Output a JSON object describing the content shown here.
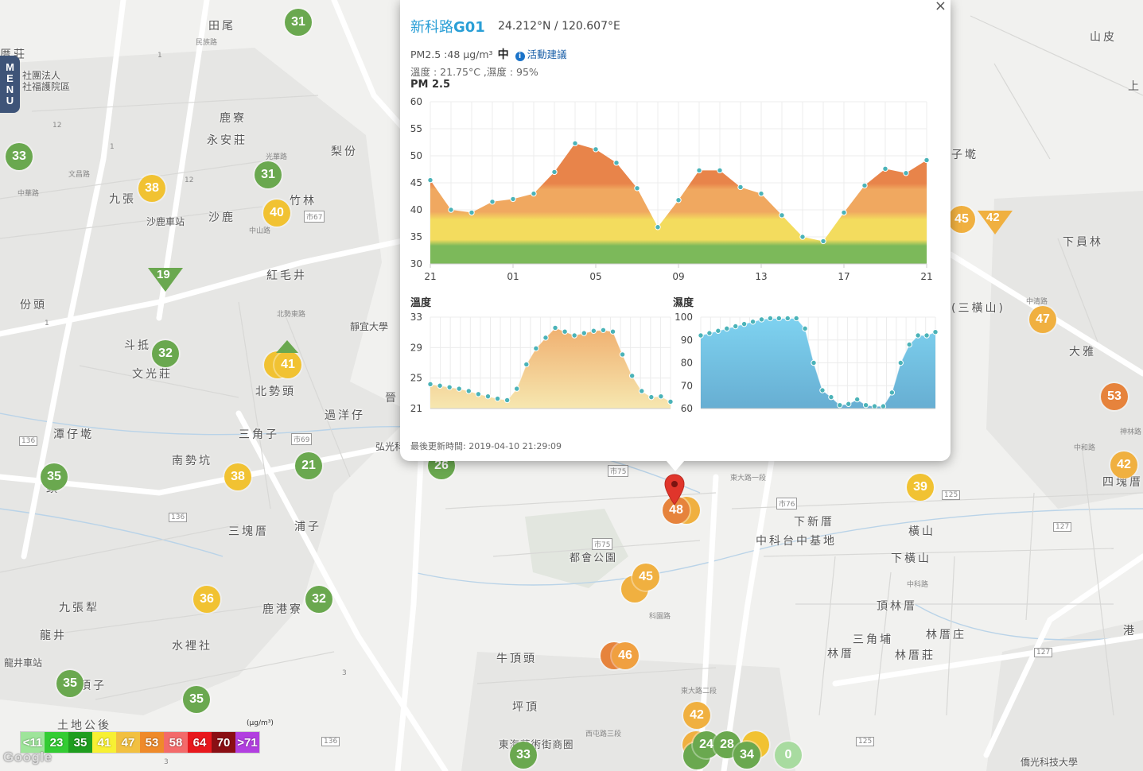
{
  "map": {
    "places": [
      {
        "label": "田尾"
      },
      {
        "label": "鹿寮"
      },
      {
        "label": "永安莊"
      },
      {
        "label": "梨份"
      },
      {
        "label": "竹林"
      },
      {
        "label": "沙鹿"
      },
      {
        "label": "九張"
      },
      {
        "label": "沙鹿車站"
      },
      {
        "label": "紅毛井"
      },
      {
        "label": "份頭"
      },
      {
        "label": "斗抵"
      },
      {
        "label": "文光莊"
      },
      {
        "label": "北勢頭"
      },
      {
        "label": "過洋仔"
      },
      {
        "label": "三角子"
      },
      {
        "label": "潭仔墘"
      },
      {
        "label": "南勢坑"
      },
      {
        "label": "三塊厝"
      },
      {
        "label": "浦子"
      },
      {
        "label": "九張犁"
      },
      {
        "label": "龍井"
      },
      {
        "label": "水裡社"
      },
      {
        "label": "鹿港寮"
      },
      {
        "label": "牛頂頭"
      },
      {
        "label": "都會公園"
      },
      {
        "label": "坪頂"
      },
      {
        "label": "東海藝術街商圈"
      },
      {
        "label": "下新厝"
      },
      {
        "label": "中科台中基地"
      },
      {
        "label": "橫山"
      },
      {
        "label": "下橫山"
      },
      {
        "label": "頂林厝"
      },
      {
        "label": "三角埔"
      },
      {
        "label": "林厝"
      },
      {
        "label": "林厝庄"
      },
      {
        "label": "林厝莊"
      },
      {
        "label": "大雅"
      },
      {
        "label": "下員林"
      },
      {
        "label": "山皮"
      },
      {
        "label": "四塊厝"
      },
      {
        "label": "港"
      },
      {
        "label": "土地公後"
      },
      {
        "label": "龍井車站"
      },
      {
        "label": "頂子"
      },
      {
        "label": "靜宜大學"
      },
      {
        "label": "弘光科"
      },
      {
        "label": "僑光科技大學"
      },
      {
        "label": "子墘"
      },
      {
        "label": "上"
      },
      {
        "label": "頭"
      },
      {
        "label": "厝莊"
      },
      {
        "label": "社團法人"
      },
      {
        "label": "社福護院區"
      },
      {
        "label": "晉"
      },
      {
        "label": "三塊"
      },
      {
        "label": "(三橫山)"
      }
    ],
    "road_labels": [
      "市67",
      "市69",
      "市75",
      "市75",
      "市76",
      "136",
      "136",
      "136",
      "125",
      "125",
      "127",
      "127",
      "12",
      "12",
      "1",
      "1",
      "1",
      "3",
      "3",
      "光華路",
      "中華路",
      "文昌路",
      "民族路",
      "中山路",
      "北勢東路",
      "東大路一段",
      "東大路二段",
      "中科路",
      "西屯路三段",
      "科園路",
      "中和路",
      "神林路",
      "中清路"
    ],
    "markers": [
      {
        "value": "31",
        "color": "#6aa84f"
      },
      {
        "value": "33",
        "color": "#6aa84f"
      },
      {
        "value": "38",
        "color": "#f1c232"
      },
      {
        "value": "31",
        "color": "#6aa84f"
      },
      {
        "value": "40",
        "color": "#f1c232"
      },
      {
        "value": "32",
        "color": "#6aa84f"
      },
      {
        "value": "41",
        "color": "#f1c232"
      },
      {
        "value": "35",
        "color": "#6aa84f"
      },
      {
        "value": "38",
        "color": "#f1c232"
      },
      {
        "value": "21",
        "color": "#6aa84f"
      },
      {
        "value": "26",
        "color": "#6aa84f"
      },
      {
        "value": "36",
        "color": "#f1c232"
      },
      {
        "value": "32",
        "color": "#6aa84f"
      },
      {
        "value": "35",
        "color": "#6aa84f"
      },
      {
        "value": "35",
        "color": "#6aa84f"
      },
      {
        "value": "33",
        "color": "#6aa84f"
      },
      {
        "value": "48",
        "color": "#e6833c"
      },
      {
        "value": "45",
        "color": "#f0b040"
      },
      {
        "value": "46",
        "color": "#f0a040"
      },
      {
        "value": "42",
        "color": "#f0b040"
      },
      {
        "value": "24",
        "color": "#6aa84f"
      },
      {
        "value": "28",
        "color": "#6aa84f"
      },
      {
        "value": "34",
        "color": "#6aa84f"
      },
      {
        "value": "0",
        "color": "#a8dba0"
      },
      {
        "value": "39",
        "color": "#f1c232"
      },
      {
        "value": "45",
        "color": "#f0b040"
      },
      {
        "value": "47",
        "color": "#f0b040"
      },
      {
        "value": "53",
        "color": "#e6833c"
      },
      {
        "value": "42",
        "color": "#f0b040"
      }
    ],
    "triangles": [
      {
        "value": "19",
        "color": "#6aa84f",
        "direction": "down"
      },
      {
        "value": "42",
        "color": "#f0b040",
        "direction": "down"
      }
    ]
  },
  "menu": {
    "label": [
      "M",
      "E",
      "N",
      "U"
    ]
  },
  "popup": {
    "close_label": "×",
    "station_prefix": "新科路",
    "station_code": "G01",
    "coords": "24.212°N / 120.607°E",
    "pm_text": "PM2.5 :48 μg/m³",
    "pm_level": "中",
    "info_icon": "i",
    "advice_link": "活動建議",
    "temp_text": "溫度 : 21.75°C ,濕度 : 95%",
    "update_text": "最後更新時間: 2019-04-10 21:29:09"
  },
  "chart_data": [
    {
      "type": "area",
      "title": "PM 2.5",
      "x_tick_labels": [
        "21",
        "01",
        "05",
        "09",
        "13",
        "17",
        "21"
      ],
      "y_ticks": [
        30,
        35,
        40,
        45,
        50,
        55,
        60
      ],
      "ylim": [
        30,
        60
      ],
      "values": [
        45.5,
        40,
        39.5,
        41.5,
        42,
        43,
        47,
        52.3,
        51.2,
        48.7,
        44,
        36.8,
        41.8,
        47.3,
        47.3,
        44.2,
        43,
        39,
        35,
        34.2,
        39.5,
        44.5,
        47.6,
        46.8,
        49.2
      ],
      "grid": true,
      "colors": {
        "green": "#7cb95a",
        "yellow": "#f3dc5e",
        "orange": "#f0a860",
        "red_orange": "#e8844a"
      }
    },
    {
      "type": "area",
      "title": "溫度",
      "y_ticks": [
        21,
        25,
        29,
        33
      ],
      "ylim": [
        21,
        33
      ],
      "values": [
        24.2,
        24,
        23.8,
        23.6,
        23.3,
        22.9,
        22.6,
        22.3,
        22.1,
        23.6,
        26.8,
        28.9,
        30.3,
        31.6,
        31.1,
        30.6,
        30.9,
        31.2,
        31.3,
        31.1,
        28.1,
        25.3,
        23.3,
        22.5,
        22.6,
        21.9
      ],
      "grid": true,
      "fill_top": "#f0b070",
      "fill_bottom": "#f6e7b0"
    },
    {
      "type": "area",
      "title": "濕度",
      "y_ticks": [
        60,
        70,
        80,
        90,
        100
      ],
      "ylim": [
        60,
        100
      ],
      "values": [
        92,
        93,
        94,
        95,
        96,
        97,
        98,
        99,
        99.5,
        99.5,
        99.5,
        99.5,
        95,
        80,
        68,
        65,
        61.5,
        62,
        64,
        61.5,
        61,
        61,
        67,
        80,
        88,
        92,
        92,
        93.5
      ],
      "grid": true,
      "fill_top": "#7ed2f0",
      "fill_bottom": "#67aed2"
    }
  ],
  "legend": {
    "unit": "(μg/m³)",
    "cells": [
      {
        "label": "<11",
        "color": "#9ee49a"
      },
      {
        "label": "23",
        "color": "#33cc33"
      },
      {
        "label": "35",
        "color": "#1f9e1f"
      },
      {
        "label": "41",
        "color": "#f7f033"
      },
      {
        "label": "47",
        "color": "#f2c040"
      },
      {
        "label": "53",
        "color": "#ef8a2a"
      },
      {
        "label": "58",
        "color": "#f36a6a"
      },
      {
        "label": "64",
        "color": "#e8181d"
      },
      {
        "label": "70",
        "color": "#8a0f14"
      },
      {
        "label": ">71",
        "color": "#b23fe0"
      }
    ]
  },
  "google_logo": "Google"
}
